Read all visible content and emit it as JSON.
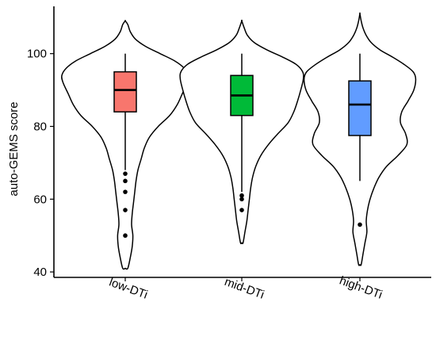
{
  "chart_data": {
    "type": "violin",
    "title": "",
    "xlabel": "",
    "ylabel": "auto-GEMS score",
    "ylim": [
      38.5,
      113
    ],
    "y_ticks": [
      40,
      60,
      80,
      100
    ],
    "grid": false,
    "legend": "none",
    "categories": [
      "low-DTi",
      "mid-DTi",
      "high-DTi"
    ],
    "groups": [
      {
        "name": "low-DTi",
        "color": "#F8766D",
        "box": {
          "q1": 84,
          "median": 90,
          "q3": 95,
          "whisker_low": 68,
          "whisker_high": 100
        },
        "outliers": [
          67,
          65,
          62,
          57,
          50
        ],
        "violin_range": [
          41,
          109
        ],
        "density": [
          [
            41,
            0.04
          ],
          [
            44,
            0.08
          ],
          [
            47,
            0.11
          ],
          [
            50,
            0.12
          ],
          [
            53,
            0.1
          ],
          [
            56,
            0.11
          ],
          [
            59,
            0.13
          ],
          [
            62,
            0.15
          ],
          [
            65,
            0.17
          ],
          [
            68,
            0.2
          ],
          [
            71,
            0.25
          ],
          [
            74,
            0.3
          ],
          [
            77,
            0.38
          ],
          [
            80,
            0.52
          ],
          [
            83,
            0.7
          ],
          [
            86,
            0.82
          ],
          [
            89,
            0.9
          ],
          [
            92,
            0.98
          ],
          [
            94,
            1.0
          ],
          [
            96,
            0.93
          ],
          [
            98,
            0.78
          ],
          [
            100,
            0.55
          ],
          [
            102,
            0.32
          ],
          [
            104,
            0.16
          ],
          [
            106,
            0.08
          ],
          [
            108,
            0.04
          ],
          [
            109,
            0.0
          ]
        ]
      },
      {
        "name": "mid-DTi",
        "color": "#00BA38",
        "box": {
          "q1": 83,
          "median": 88.5,
          "q3": 94,
          "whisker_low": 62,
          "whisker_high": 100
        },
        "outliers": [
          61,
          60,
          57
        ],
        "violin_range": [
          48,
          109
        ],
        "density": [
          [
            48,
            0.02
          ],
          [
            51,
            0.05
          ],
          [
            54,
            0.08
          ],
          [
            57,
            0.1
          ],
          [
            60,
            0.12
          ],
          [
            63,
            0.14
          ],
          [
            66,
            0.17
          ],
          [
            69,
            0.22
          ],
          [
            72,
            0.3
          ],
          [
            75,
            0.42
          ],
          [
            78,
            0.57
          ],
          [
            81,
            0.73
          ],
          [
            84,
            0.82
          ],
          [
            87,
            0.88
          ],
          [
            90,
            0.93
          ],
          [
            93,
            0.97
          ],
          [
            95,
            0.96
          ],
          [
            97,
            0.86
          ],
          [
            99,
            0.65
          ],
          [
            101,
            0.4
          ],
          [
            103,
            0.2
          ],
          [
            105,
            0.09
          ],
          [
            107,
            0.04
          ],
          [
            109,
            0.0
          ]
        ]
      },
      {
        "name": "high-DTi",
        "color": "#619CFF",
        "box": {
          "q1": 77.5,
          "median": 86,
          "q3": 92.5,
          "whisker_low": 65,
          "whisker_high": 100
        },
        "outliers": [
          53
        ],
        "violin_range": [
          42,
          111
        ],
        "density": [
          [
            42,
            0.02
          ],
          [
            45,
            0.05
          ],
          [
            48,
            0.08
          ],
          [
            51,
            0.11
          ],
          [
            54,
            0.1
          ],
          [
            57,
            0.12
          ],
          [
            60,
            0.16
          ],
          [
            63,
            0.22
          ],
          [
            66,
            0.3
          ],
          [
            69,
            0.42
          ],
          [
            72,
            0.6
          ],
          [
            75,
            0.74
          ],
          [
            78,
            0.72
          ],
          [
            81,
            0.64
          ],
          [
            84,
            0.66
          ],
          [
            87,
            0.76
          ],
          [
            90,
            0.85
          ],
          [
            93,
            0.88
          ],
          [
            95,
            0.84
          ],
          [
            97,
            0.7
          ],
          [
            99,
            0.52
          ],
          [
            101,
            0.32
          ],
          [
            103,
            0.18
          ],
          [
            105,
            0.1
          ],
          [
            107,
            0.05
          ],
          [
            109,
            0.02
          ],
          [
            111,
            0.0
          ]
        ]
      }
    ]
  }
}
